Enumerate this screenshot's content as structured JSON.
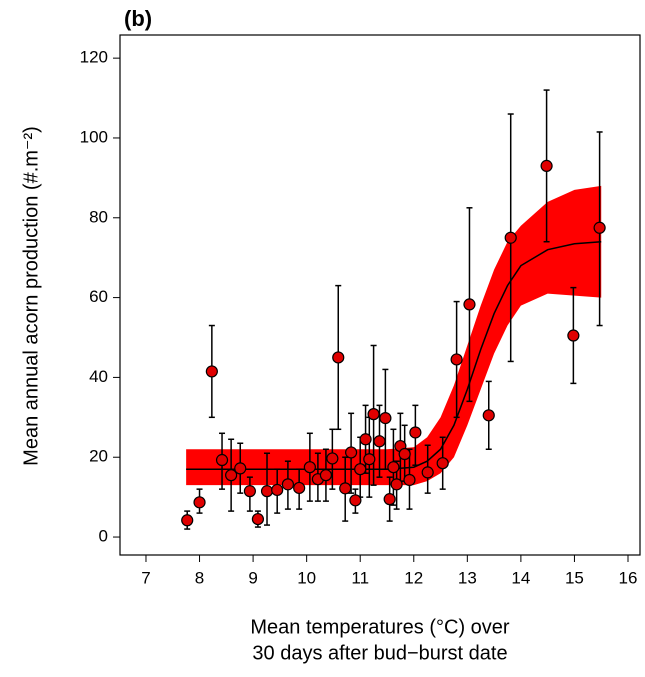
{
  "chart_data": {
    "type": "scatter",
    "panel_label": "(b)",
    "x_label": [
      "Mean temperatures (°C) over",
      "30 days after bud−burst date"
    ],
    "y_label": "Mean annual acorn production (#.m⁻²)",
    "xlim": [
      6.515,
      16.224
    ],
    "ylim": [
      -4.5,
      125.8
    ],
    "xticks": [
      7,
      8,
      9,
      10,
      11,
      12,
      13,
      14,
      15,
      16
    ],
    "yticks": [
      0,
      20,
      40,
      60,
      80,
      100,
      120
    ],
    "grid": false,
    "series": [
      {
        "color": "#e00000",
        "x": [
          7.77,
          8.0,
          8.23,
          8.42,
          8.59,
          8.76,
          8.94,
          9.09,
          9.26,
          9.45,
          9.65,
          9.86,
          10.06,
          10.21,
          10.36,
          10.48,
          10.59,
          10.72,
          10.83,
          10.91,
          11.0,
          11.1,
          11.17,
          11.25,
          11.36,
          11.47,
          11.55,
          11.62,
          11.68,
          11.75,
          11.83,
          11.92,
          12.03,
          12.26,
          12.54,
          12.8,
          13.04,
          13.4,
          13.81,
          14.48,
          14.98,
          15.47
        ],
        "values": [
          4.2,
          8.7,
          41.5,
          19.3,
          15.5,
          17.2,
          11.5,
          4.5,
          11.5,
          11.8,
          13.2,
          12.3,
          17.5,
          14.5,
          15.5,
          19.7,
          45,
          12.2,
          21.2,
          9.2,
          17,
          24.5,
          19.5,
          30.8,
          24,
          29.8,
          9.5,
          17.5,
          13.2,
          22.8,
          20.8,
          14.3,
          26.2,
          16.2,
          18.5,
          44.5,
          58.3,
          30.5,
          75,
          93,
          50.5,
          77.5
        ],
        "lower": [
          2,
          6,
          30,
          12,
          6.5,
          11,
          6.5,
          2.5,
          3,
          6,
          7,
          7,
          9,
          9,
          9,
          12,
          27,
          4,
          11,
          6,
          10,
          16,
          10,
          13,
          15,
          17,
          4,
          8,
          7,
          14,
          14,
          7,
          18,
          11,
          12,
          30,
          34,
          22,
          44,
          74,
          38.5,
          53
        ],
        "upper": [
          6.5,
          12,
          53,
          26,
          24.5,
          23.5,
          15,
          6.5,
          21,
          17,
          19,
          17,
          26,
          21,
          22,
          27,
          63,
          20,
          31,
          12,
          25,
          33,
          30,
          48,
          33,
          42,
          15,
          27,
          19,
          31,
          28,
          22,
          33,
          23,
          25,
          59,
          82.5,
          39,
          106,
          112,
          62.5,
          101.5
        ]
      }
    ],
    "fit": {
      "color": "#ff0000",
      "x": [
        7.75,
        11.5,
        12,
        12.25,
        12.5,
        12.75,
        13,
        13.25,
        13.5,
        13.75,
        14,
        14.5,
        15,
        15.5
      ],
      "values": [
        17,
        17,
        17.5,
        19,
        22,
        28,
        37,
        47,
        56,
        63,
        68,
        72,
        73.5,
        74
      ],
      "lower": [
        13,
        13,
        13,
        14,
        16,
        20,
        28,
        37,
        46,
        53,
        58,
        61,
        60.5,
        60
      ],
      "upper": [
        22,
        22,
        22.5,
        25,
        30,
        38,
        48,
        58,
        67,
        74,
        78,
        84,
        87,
        88
      ]
    }
  }
}
